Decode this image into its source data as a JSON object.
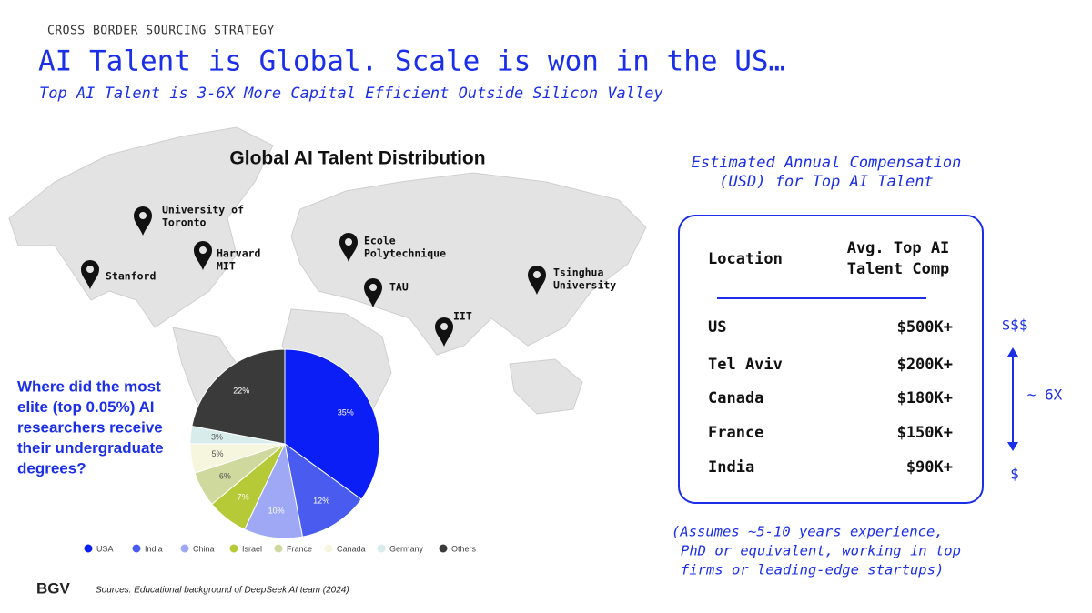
{
  "header": {
    "eyebrow": "CROSS BORDER SOURCING STRATEGY",
    "title": "AI Talent is Global. Scale is won in the US…",
    "subtitle": "Top AI Talent is 3-6X More Capital Efficient Outside Silicon Valley"
  },
  "map": {
    "title": "Global AI Talent Distribution",
    "pins": [
      {
        "lines": [
          "University of",
          "Toronto"
        ]
      },
      {
        "lines": [
          "Harvard",
          "MIT"
        ]
      },
      {
        "lines": [
          "Stanford"
        ]
      },
      {
        "lines": [
          "Ecole",
          "Polytechnique"
        ]
      },
      {
        "lines": [
          "TAU"
        ]
      },
      {
        "lines": [
          "IIT"
        ]
      },
      {
        "lines": [
          "Tsinghua",
          "University"
        ]
      }
    ]
  },
  "chart_data": {
    "type": "pie",
    "title": [
      "Where did the most",
      "elite (top 0.05%) AI",
      "researchers receive",
      "their undergraduate",
      "degrees?"
    ],
    "categories": [
      "USA",
      "India",
      "China",
      "Israel",
      "France",
      "Canada",
      "Germany",
      "Others"
    ],
    "values": [
      35,
      12,
      10,
      7,
      6,
      5,
      3,
      22
    ],
    "value_labels": [
      "35%",
      "12%",
      "10%",
      "7%",
      "6%",
      "5%",
      "3%",
      "22%"
    ],
    "colors": [
      "#0a1ef5",
      "#4a5cf0",
      "#9ea8f4",
      "#b6c937",
      "#cfd99d",
      "#f6f6de",
      "#d9ecec",
      "#3a3a3a"
    ]
  },
  "compensation": {
    "title": [
      "Estimated Annual Compensation",
      "(USD) for Top AI Talent"
    ],
    "columns": [
      "Location",
      [
        "Avg. Top AI",
        "Talent Comp"
      ]
    ],
    "rows": [
      [
        "US",
        "$500K+"
      ],
      [
        "Tel Aviv",
        "$200K+"
      ],
      [
        "Canada",
        "$180K+"
      ],
      [
        "France",
        "$150K+"
      ],
      [
        "India",
        "$90K+"
      ]
    ],
    "scale": {
      "high": "$$$",
      "ratio": "~ 6X",
      "low": "$"
    },
    "note": [
      "(Assumes ~5-10 years experience,",
      "PhD or equivalent, working in top",
      "firms or leading-edge startups)"
    ]
  },
  "footer": {
    "logo": "BGV",
    "source": "Sources: Educational background of DeepSeek AI team (2024)"
  }
}
